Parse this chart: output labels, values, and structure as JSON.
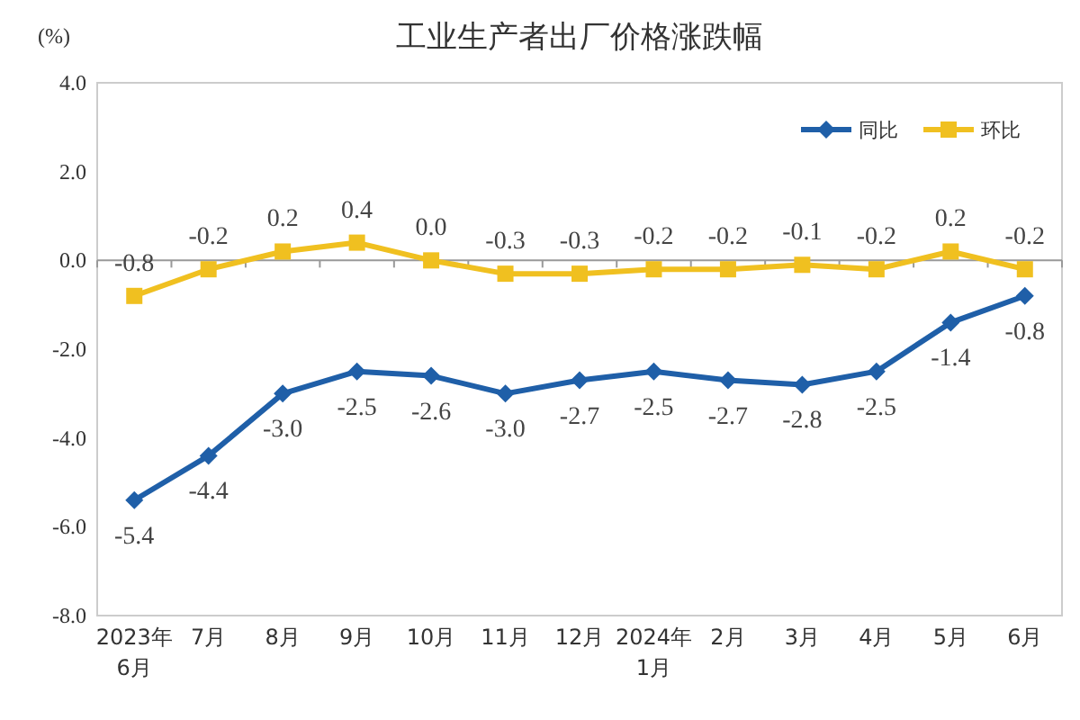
{
  "chart_data": {
    "type": "line",
    "title": "工业生产者出厂价格涨跌幅",
    "ylabel": "(%)",
    "categories": [
      "2023年\n6月",
      "7月",
      "8月",
      "9月",
      "10月",
      "11月",
      "12月",
      "2024年\n1月",
      "2月",
      "3月",
      "4月",
      "5月",
      "6月"
    ],
    "series": [
      {
        "name": "同比",
        "color": "#1f5fa8",
        "marker": "diamond",
        "values": [
          -5.4,
          -4.4,
          -3,
          -2.5,
          -2.6,
          -3,
          -2.7,
          -2.5,
          -2.7,
          -2.8,
          -2.5,
          -1.4,
          -0.8
        ],
        "value_labels": [
          "-5.4",
          "-4.4",
          "-3.0",
          "-2.5",
          "-2.6",
          "-3.0",
          "-2.7",
          "-2.5",
          "-2.7",
          "-2.8",
          "-2.5",
          "-1.4",
          "-0.8"
        ]
      },
      {
        "name": "环比",
        "color": "#f0c020",
        "marker": "square",
        "values": [
          -0.8,
          -0.2,
          0.2,
          0.4,
          0,
          -0.3,
          -0.3,
          -0.2,
          -0.2,
          -0.1,
          -0.2,
          0.2,
          -0.2
        ],
        "value_labels": [
          "-0.8",
          "-0.2",
          "0.2",
          "0.4",
          "0.0",
          "-0.3",
          "-0.3",
          "-0.2",
          "-0.2",
          "-0.1",
          "-0.2",
          "0.2",
          "-0.2"
        ]
      }
    ],
    "ylim": [
      -8,
      4
    ],
    "yticks": [
      {
        "value": 4,
        "label": "4.0"
      },
      {
        "value": 2,
        "label": "2.0"
      },
      {
        "value": 0,
        "label": "0.0"
      },
      {
        "value": -2,
        "label": "-2.0"
      },
      {
        "value": -4,
        "label": "-4.0"
      },
      {
        "value": -6,
        "label": "-6.0"
      },
      {
        "value": -8,
        "label": "-8.0"
      }
    ],
    "legend": "top right"
  }
}
